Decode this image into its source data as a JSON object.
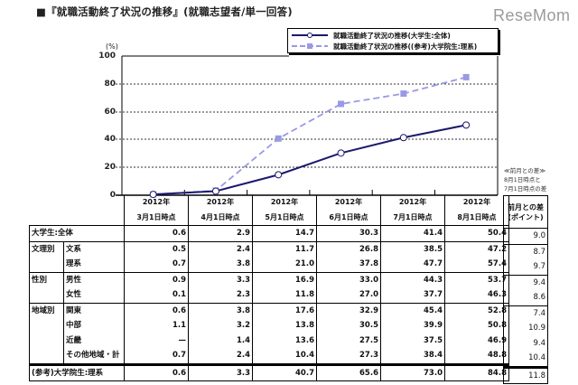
{
  "header": {
    "title": "■『就職活動終了状況の推移』(就職志望者/単一回答)",
    "logo": "ReseMom"
  },
  "chart_data": {
    "type": "line",
    "title": "就職活動終了状況の推移",
    "subtitle": "就職志望者/単一回答",
    "ylabel": "(%)",
    "xlabel": "",
    "ylim": [
      0,
      100
    ],
    "yticks": [
      "100",
      "80",
      "60",
      "40",
      "20",
      "0"
    ],
    "grid": true,
    "legend_position": "top-right",
    "categories": [
      "2012年 3月1日時点",
      "2012年 4月1日時点",
      "2012年 5月1日時点",
      "2012年 6月1日時点",
      "2012年 7月1日時点",
      "2012年 8月1日時点"
    ],
    "series": [
      {
        "name": "就職活動終了状況の推移(大学生:全体)",
        "color": "#1a1a6e",
        "style": "solid",
        "marker": "circle-open",
        "values": [
          0.6,
          2.9,
          14.7,
          30.3,
          41.4,
          50.4
        ]
      },
      {
        "name": "就職活動終了状況の推移((参考)大学院生:理系)",
        "color": "#9999e6",
        "style": "dashed",
        "marker": "square",
        "values": [
          0.6,
          3.3,
          40.7,
          65.6,
          73.0,
          84.8
        ]
      }
    ]
  },
  "legend": {
    "items": [
      {
        "label": "就職活動終了状況の推移(大学生:全体)"
      },
      {
        "label": "就職活動終了状況の推移((参考)大学院生:理系)"
      }
    ]
  },
  "table": {
    "columns": [
      {
        "year": "2012年",
        "date": "3月1日時点"
      },
      {
        "year": "2012年",
        "date": "4月1日時点"
      },
      {
        "year": "2012年",
        "date": "5月1日時点"
      },
      {
        "year": "2012年",
        "date": "6月1日時点"
      },
      {
        "year": "2012年",
        "date": "7月1日時点"
      },
      {
        "year": "2012年",
        "date": "8月1日時点"
      }
    ],
    "diff_header": {
      "line1": "前月との差",
      "line2": "(ポイント)"
    },
    "diff_note": {
      "line1": "≪前月との差≫",
      "line2": "8月1日時点と",
      "line3": "7月1日時点の差"
    },
    "rows": [
      {
        "group": "",
        "label": "大学生:全体",
        "values": [
          "0.6",
          "2.9",
          "14.7",
          "30.3",
          "41.4",
          "50.4"
        ],
        "diff": "9.0"
      },
      {
        "group": "文理別",
        "label": "文系",
        "values": [
          "0.5",
          "2.4",
          "11.7",
          "26.8",
          "38.5",
          "47.2"
        ],
        "diff": "8.7"
      },
      {
        "group": "",
        "label": "理系",
        "values": [
          "0.7",
          "3.8",
          "21.0",
          "37.8",
          "47.7",
          "57.4"
        ],
        "diff": "9.7"
      },
      {
        "group": "性別",
        "label": "男性",
        "values": [
          "0.9",
          "3.3",
          "16.9",
          "33.0",
          "44.3",
          "53.7"
        ],
        "diff": "9.4"
      },
      {
        "group": "",
        "label": "女性",
        "values": [
          "0.1",
          "2.3",
          "11.8",
          "27.0",
          "37.7",
          "46.3"
        ],
        "diff": "8.6"
      },
      {
        "group": "地域別",
        "label": "関東",
        "values": [
          "0.6",
          "3.8",
          "17.6",
          "32.9",
          "45.4",
          "52.8"
        ],
        "diff": "7.4"
      },
      {
        "group": "",
        "label": "中部",
        "values": [
          "1.1",
          "3.2",
          "13.8",
          "30.5",
          "39.9",
          "50.8"
        ],
        "diff": "10.9"
      },
      {
        "group": "",
        "label": "近畿",
        "values": [
          "—",
          "1.4",
          "13.6",
          "27.5",
          "37.5",
          "46.9"
        ],
        "diff": "9.4"
      },
      {
        "group": "",
        "label": "その他地域・計",
        "values": [
          "0.7",
          "2.4",
          "10.4",
          "27.3",
          "38.4",
          "48.8"
        ],
        "diff": "10.4"
      },
      {
        "group": "",
        "label": "(参考)大学院生:理系",
        "values": [
          "0.6",
          "3.3",
          "40.7",
          "65.6",
          "73.0",
          "84.8"
        ],
        "diff": "11.8"
      }
    ]
  }
}
